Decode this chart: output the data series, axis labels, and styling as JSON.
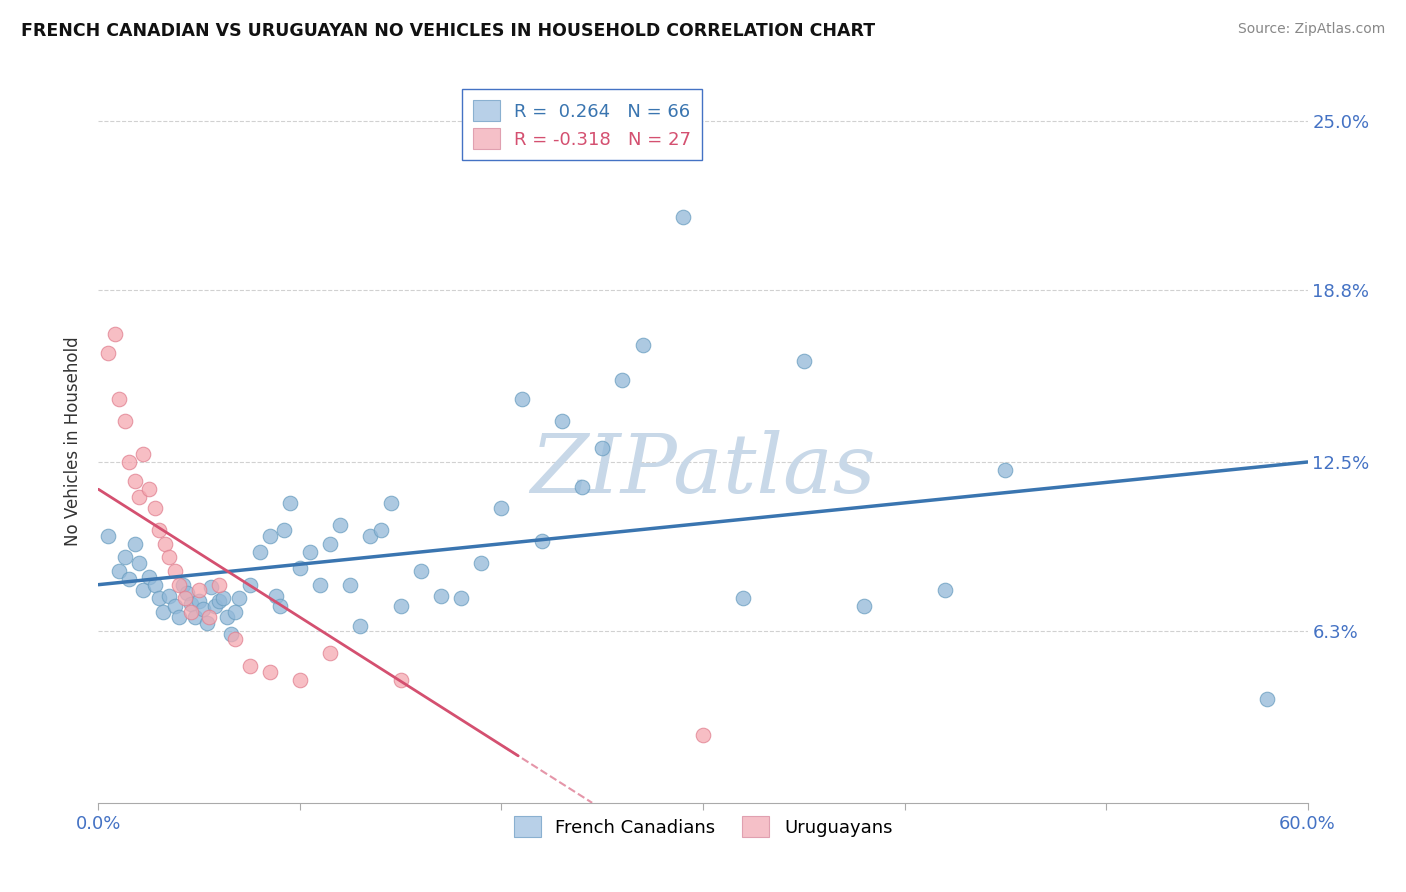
{
  "title": "FRENCH CANADIAN VS URUGUAYAN NO VEHICLES IN HOUSEHOLD CORRELATION CHART",
  "source": "Source: ZipAtlas.com",
  "ylabel": "No Vehicles in Household",
  "xlim": [
    0.0,
    0.6
  ],
  "ylim": [
    0.0,
    0.265
  ],
  "xticks": [
    0.0,
    0.1,
    0.2,
    0.3,
    0.4,
    0.5,
    0.6
  ],
  "xticklabels": [
    "0.0%",
    "",
    "",
    "",
    "",
    "",
    "60.0%"
  ],
  "ytick_positions": [
    0.063,
    0.125,
    0.188,
    0.25
  ],
  "ytick_labels": [
    "6.3%",
    "12.5%",
    "18.8%",
    "25.0%"
  ],
  "legend1_label": "R =  0.264   N = 66",
  "legend2_label": "R = -0.318   N = 27",
  "blue_dot_color": "#92b8d8",
  "pink_dot_color": "#f5a8b0",
  "blue_line_color": "#3a75b0",
  "pink_line_color": "#d45070",
  "blue_dot_edge": "#6a9ec0",
  "pink_dot_edge": "#e08090",
  "watermark_text": "ZIPatlas",
  "watermark_color": "#c8d8e8",
  "legend_box_color": "#b8d0e8",
  "legend_box_pink": "#f5c0c8",
  "french_canadian_x": [
    0.005,
    0.01,
    0.013,
    0.015,
    0.018,
    0.02,
    0.022,
    0.025,
    0.028,
    0.03,
    0.032,
    0.035,
    0.038,
    0.04,
    0.042,
    0.044,
    0.046,
    0.048,
    0.05,
    0.052,
    0.054,
    0.056,
    0.058,
    0.06,
    0.062,
    0.064,
    0.066,
    0.068,
    0.07,
    0.075,
    0.08,
    0.085,
    0.088,
    0.09,
    0.092,
    0.095,
    0.1,
    0.105,
    0.11,
    0.115,
    0.12,
    0.125,
    0.13,
    0.135,
    0.14,
    0.145,
    0.15,
    0.16,
    0.17,
    0.18,
    0.19,
    0.2,
    0.21,
    0.22,
    0.23,
    0.24,
    0.25,
    0.26,
    0.27,
    0.29,
    0.32,
    0.35,
    0.38,
    0.42,
    0.45,
    0.58
  ],
  "french_canadian_y": [
    0.098,
    0.085,
    0.09,
    0.082,
    0.095,
    0.088,
    0.078,
    0.083,
    0.08,
    0.075,
    0.07,
    0.076,
    0.072,
    0.068,
    0.08,
    0.077,
    0.073,
    0.068,
    0.074,
    0.071,
    0.066,
    0.079,
    0.072,
    0.074,
    0.075,
    0.068,
    0.062,
    0.07,
    0.075,
    0.08,
    0.092,
    0.098,
    0.076,
    0.072,
    0.1,
    0.11,
    0.086,
    0.092,
    0.08,
    0.095,
    0.102,
    0.08,
    0.065,
    0.098,
    0.1,
    0.11,
    0.072,
    0.085,
    0.076,
    0.075,
    0.088,
    0.108,
    0.148,
    0.096,
    0.14,
    0.116,
    0.13,
    0.155,
    0.168,
    0.215,
    0.075,
    0.162,
    0.072,
    0.078,
    0.122,
    0.038
  ],
  "uruguayan_x": [
    0.005,
    0.008,
    0.01,
    0.013,
    0.015,
    0.018,
    0.02,
    0.022,
    0.025,
    0.028,
    0.03,
    0.033,
    0.035,
    0.038,
    0.04,
    0.043,
    0.046,
    0.05,
    0.055,
    0.06,
    0.068,
    0.075,
    0.085,
    0.1,
    0.115,
    0.15,
    0.3
  ],
  "uruguayan_y": [
    0.165,
    0.172,
    0.148,
    0.14,
    0.125,
    0.118,
    0.112,
    0.128,
    0.115,
    0.108,
    0.1,
    0.095,
    0.09,
    0.085,
    0.08,
    0.075,
    0.07,
    0.078,
    0.068,
    0.08,
    0.06,
    0.05,
    0.048,
    0.045,
    0.055,
    0.045,
    0.025
  ],
  "blue_trend_x": [
    0.0,
    0.6
  ],
  "blue_trend_y": [
    0.08,
    0.125
  ],
  "pink_trend_x": [
    0.0,
    0.245
  ],
  "pink_trend_y": [
    0.115,
    0.0
  ]
}
